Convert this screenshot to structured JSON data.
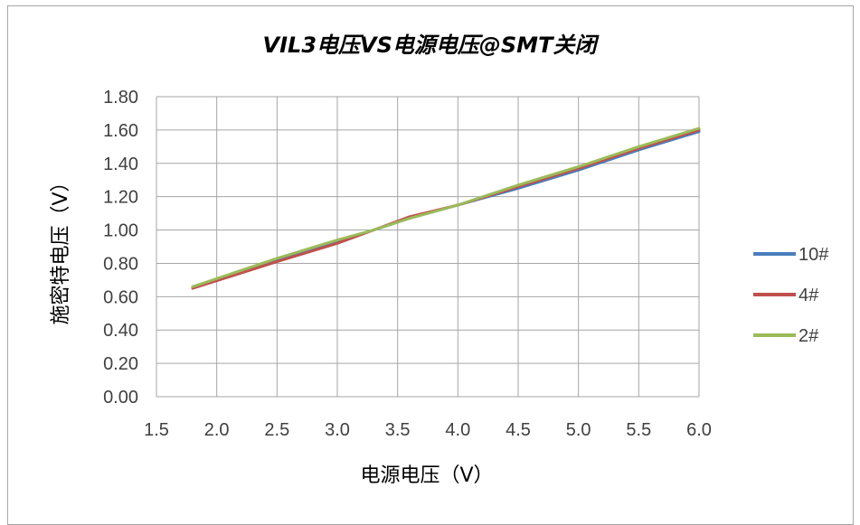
{
  "chart_data": {
    "type": "line",
    "title": "VIL3电压VS电源电压@SMT关闭",
    "xlabel": "电源电压（V）",
    "ylabel": "施密特电压（V）",
    "xlim": [
      1.5,
      6.0
    ],
    "ylim": [
      0.0,
      1.8
    ],
    "x_ticks": [
      "1.5",
      "2.0",
      "2.5",
      "3.0",
      "3.5",
      "4.0",
      "4.5",
      "5.0",
      "5.5",
      "6.0"
    ],
    "y_ticks": [
      "0.00",
      "0.20",
      "0.40",
      "0.60",
      "0.80",
      "1.00",
      "1.20",
      "1.40",
      "1.60",
      "1.80"
    ],
    "grid": true,
    "legend_position": "right",
    "series": [
      {
        "name": "10#",
        "color": "#4a7ebb",
        "x": [
          1.8,
          2.5,
          3.0,
          3.3,
          3.6,
          4.0,
          4.5,
          5.0,
          5.5,
          6.0
        ],
        "y": [
          0.66,
          0.82,
          0.93,
          1.0,
          1.07,
          1.15,
          1.25,
          1.36,
          1.48,
          1.59
        ]
      },
      {
        "name": "4#",
        "color": "#c0504d",
        "x": [
          1.8,
          2.5,
          3.0,
          3.3,
          3.6,
          4.0,
          4.5,
          5.0,
          5.5,
          6.0
        ],
        "y": [
          0.65,
          0.81,
          0.92,
          1.0,
          1.08,
          1.15,
          1.26,
          1.37,
          1.49,
          1.6
        ]
      },
      {
        "name": "2#",
        "color": "#9bbb59",
        "x": [
          1.8,
          2.5,
          3.0,
          3.3,
          3.6,
          4.0,
          4.5,
          5.0,
          5.5,
          6.0
        ],
        "y": [
          0.66,
          0.83,
          0.94,
          1.0,
          1.07,
          1.15,
          1.27,
          1.38,
          1.5,
          1.61
        ]
      }
    ]
  }
}
